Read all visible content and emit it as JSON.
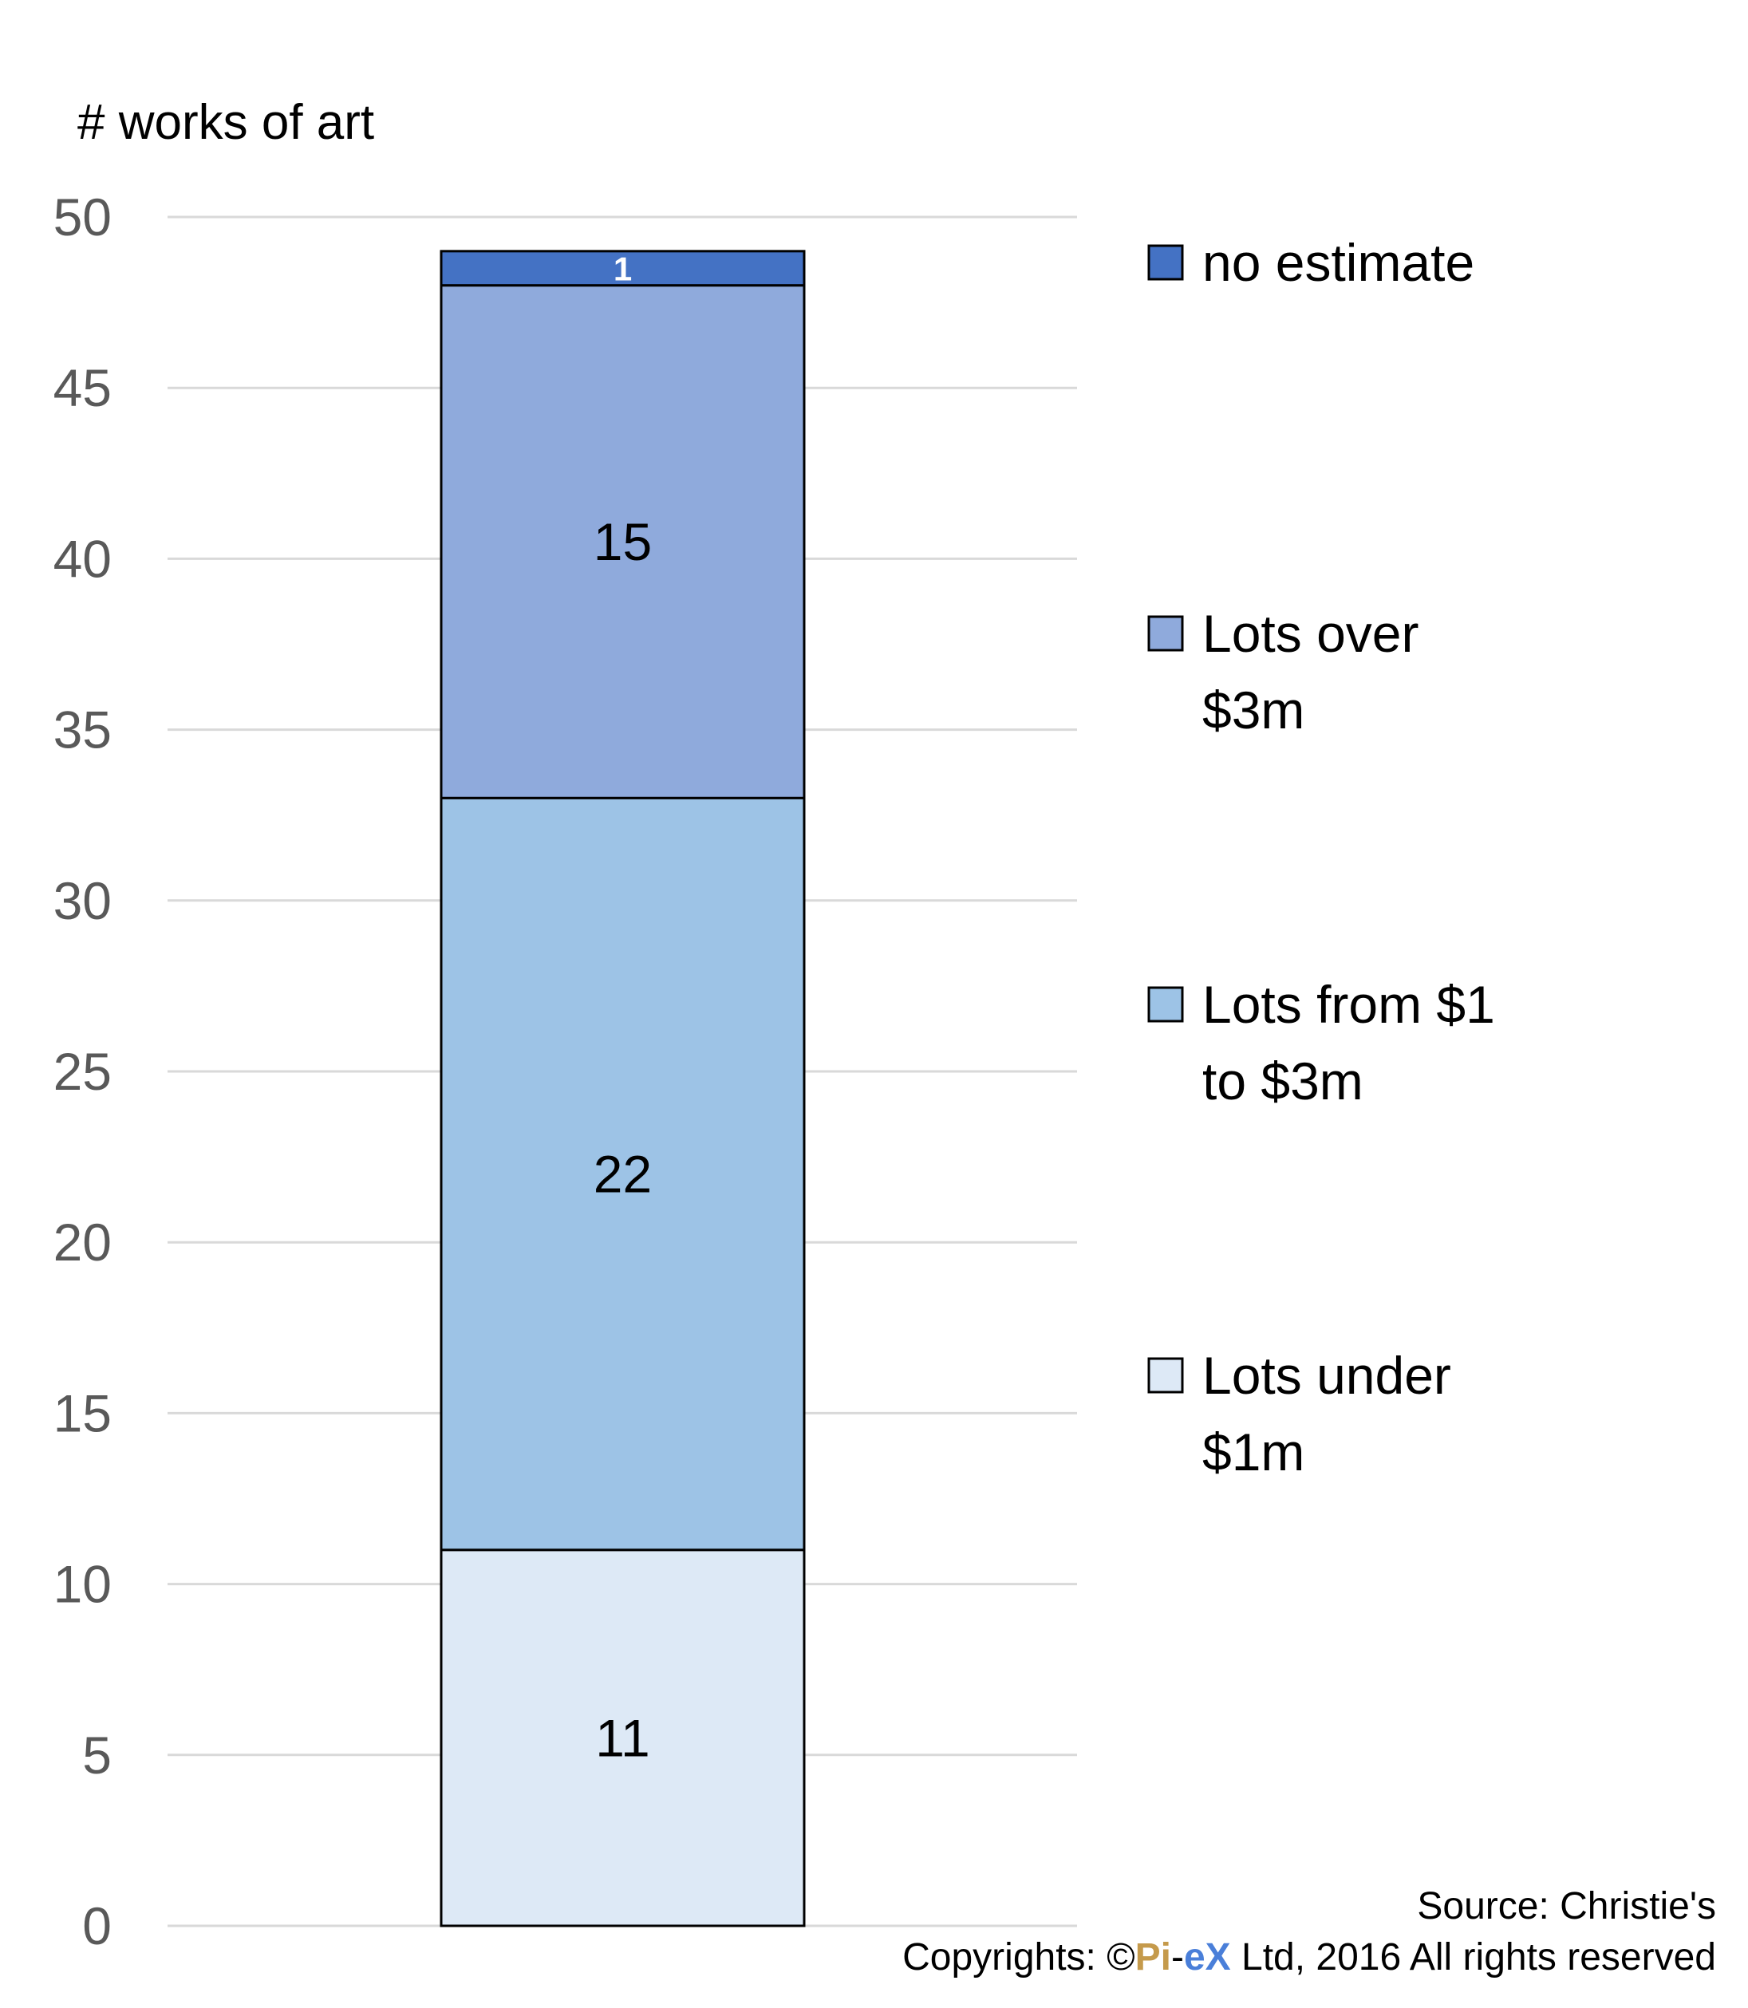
{
  "chart_data": {
    "type": "bar",
    "stacked": true,
    "ylabel": "# works of art",
    "ylim": [
      0,
      50
    ],
    "yticks": [
      0,
      5,
      10,
      15,
      20,
      25,
      30,
      35,
      40,
      45,
      50
    ],
    "grid": true,
    "legend_position": "right",
    "categories": [
      ""
    ],
    "series": [
      {
        "name": "Lots under $1m",
        "values": [
          11
        ],
        "color": "#dde9f6",
        "label": "11"
      },
      {
        "name": "Lots from $1 to $3m",
        "values": [
          22
        ],
        "color": "#9dc3e6",
        "label": "22"
      },
      {
        "name": "Lots over $3m",
        "values": [
          15
        ],
        "color": "#8faadc",
        "label": "15"
      },
      {
        "name": "no estimate",
        "values": [
          1
        ],
        "color": "#4472c4",
        "label": "1"
      }
    ]
  },
  "legend": {
    "items": [
      {
        "lines": [
          "no estimate"
        ],
        "color": "#4472c4"
      },
      {
        "lines": [
          "Lots over",
          "$3m"
        ],
        "color": "#8faadc"
      },
      {
        "lines": [
          "Lots from $1",
          "to $3m"
        ],
        "color": "#9dc3e6"
      },
      {
        "lines": [
          "Lots under",
          "$1m"
        ],
        "color": "#dde9f6"
      }
    ]
  },
  "footer": {
    "source": "Source: Christie's",
    "copyright_prefix": "Copyrights: ©",
    "brand_pi": "Pi",
    "brand_dash": "-",
    "brand_ex": "eX",
    "copyright_suffix": " Ltd, 2016 All rights reserved"
  }
}
